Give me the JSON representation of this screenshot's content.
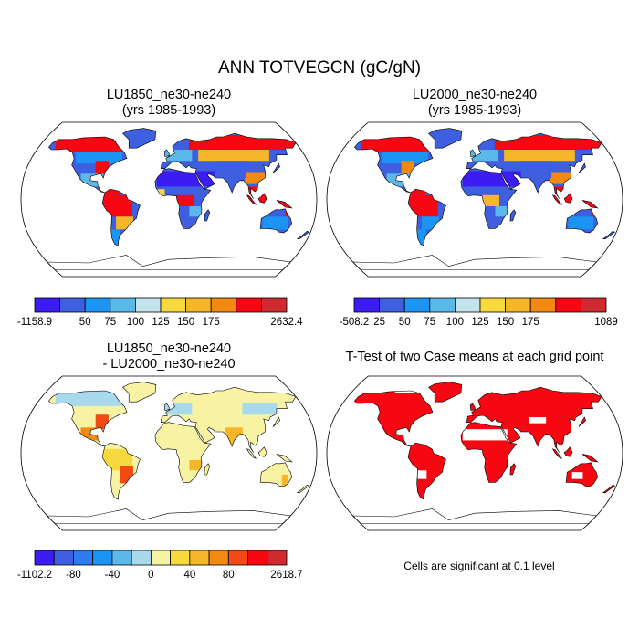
{
  "title": "ANN TOTVEGCN (gC/gN)",
  "panels": [
    {
      "title_line1": "LU1850_ne30-ne240",
      "title_line2": "(yrs 1985-1993)"
    },
    {
      "title_line1": "LU2000_ne30-ne240",
      "title_line2": "(yrs 1985-1993)"
    },
    {
      "title_line1": "LU1850_ne30-ne240",
      "title_line2": "- LU2000_ne30-ne240"
    },
    {
      "title_line1": "T-Test of two Case means at each grid point",
      "title_line2": ""
    }
  ],
  "colorbars": [
    {
      "colors": [
        "#3b1cf2",
        "#3d5fe0",
        "#1c94f4",
        "#5ab9e9",
        "#c4e4ec",
        "#f7d93e",
        "#f5b629",
        "#f28a12",
        "#f60712",
        "#cf2a2f"
      ],
      "labels": [
        "-1158.9",
        "",
        "50",
        "75",
        "100",
        "125",
        "150",
        "175",
        "",
        "2632.4"
      ]
    },
    {
      "colors": [
        "#3b1cf2",
        "#3d5fe0",
        "#1c94f4",
        "#5ab9e9",
        "#c4e4ec",
        "#f7d93e",
        "#f5b629",
        "#f28a12",
        "#f60712",
        "#cf2a2f"
      ],
      "labels": [
        "-508.2",
        "25",
        "50",
        "75",
        "100",
        "125",
        "150",
        "175",
        "",
        "1089"
      ]
    },
    {
      "colors": [
        "#3b1cf2",
        "#3d5fe0",
        "#2f7cf0",
        "#1c94f4",
        "#5ab9e9",
        "#a9d9ec",
        "#f7f3a3",
        "#f7d93e",
        "#f5b629",
        "#f28a12",
        "#f24a12",
        "#f60712",
        "#cf2a2f"
      ],
      "labels": [
        "-1102.2",
        "",
        "-80",
        "",
        "-40",
        "",
        "0",
        "",
        "40",
        "",
        "80",
        "",
        "2618.7"
      ]
    }
  ],
  "significance_note": "Cells are significant at 0.1 level",
  "chart_data": [
    {
      "type": "heatmap",
      "title": "LU1850_ne30-ne240 (yrs 1985-1993)",
      "field": "ANN TOTVEGCN",
      "units": "gC/gN",
      "projection": "Robinson",
      "min": -1158.9,
      "max": 2632.4,
      "contour_levels": [
        25,
        50,
        75,
        100,
        125,
        150,
        175,
        200
      ],
      "regional_values": {
        "high_latitude_boreal": "125-200",
        "northern_mid_latitudes": "25-75",
        "sahara_arabia": "<25",
        "amazon": ">175",
        "central_africa": ">175",
        "southeast_asia": ">175",
        "australia": "25-75"
      }
    },
    {
      "type": "heatmap",
      "title": "LU2000_ne30-ne240 (yrs 1985-1993)",
      "field": "ANN TOTVEGCN",
      "units": "gC/gN",
      "projection": "Robinson",
      "min": -508.2,
      "max": 1089,
      "contour_levels": [
        25,
        50,
        75,
        100,
        125,
        150,
        175,
        200
      ],
      "regional_values": {
        "high_latitude_boreal": "125-200",
        "northern_mid_latitudes": "25-75",
        "sahara_arabia": "<25",
        "amazon": "125-200",
        "central_africa": "100-175",
        "southeast_asia": ">175",
        "australia": "25-75"
      }
    },
    {
      "type": "heatmap",
      "title": "LU1850_ne30-ne240 - LU2000_ne30-ne240",
      "field": "ANN TOTVEGCN difference",
      "units": "gC/gN",
      "projection": "Robinson",
      "min": -1102.2,
      "max": 2618.7,
      "contour_levels": [
        -100,
        -80,
        -60,
        -40,
        -20,
        0,
        20,
        40,
        60,
        80,
        100
      ],
      "regional_values": {
        "most_land": "0 to 20",
        "eastern_north_america": "40-100",
        "amazon_south_brazil": "40-100",
        "india": "20-60"
      }
    },
    {
      "type": "heatmap",
      "title": "T-Test of two Case means at each grid point",
      "field": "significance",
      "units": "",
      "projection": "Robinson",
      "levels": [
        "significant at 0.1 level (red)",
        "not significant (white)"
      ],
      "regional_values": {
        "significant_fraction": "most land cells"
      }
    }
  ]
}
